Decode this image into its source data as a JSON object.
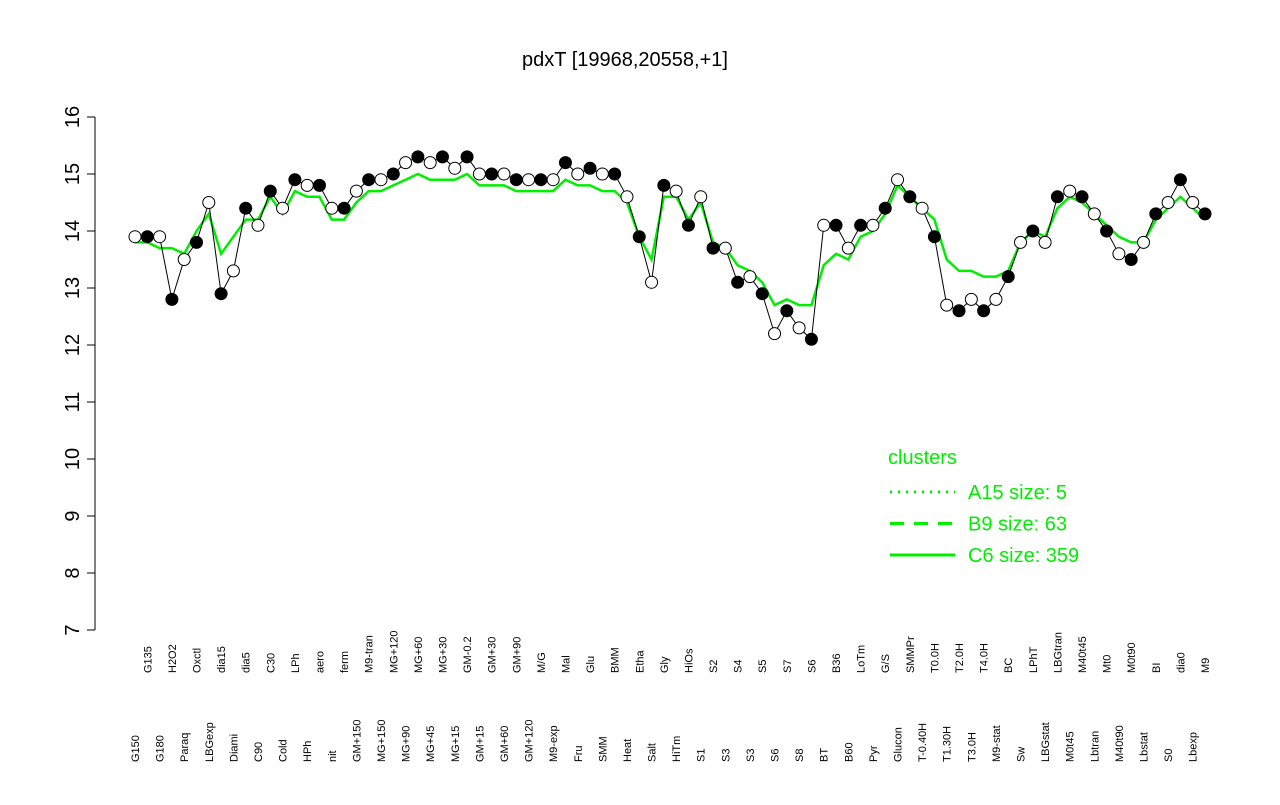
{
  "chart_data": {
    "type": "line",
    "title": "pdxT [19968,20558,+1]",
    "categories": [
      "G150",
      "G135",
      "G180",
      "H2O2",
      "Paraq",
      "Oxctl",
      "LBGexp",
      "dia15",
      "Diami",
      "dia5",
      "C90",
      "C30",
      "Cold",
      "LPh",
      "HPh",
      "aero",
      "nit",
      "ferm",
      "GM+150",
      "M9-tran",
      "MG+150",
      "MG+120",
      "MG+90",
      "MG+60",
      "MG+45",
      "MG+30",
      "MG+15",
      "GM-0.2",
      "GM+15",
      "GM+30",
      "GM+60",
      "GM+90",
      "GM+120",
      "M/G",
      "M9-exp",
      "Mal",
      "Fru",
      "Glu",
      "SMM",
      "BMM",
      "Heat",
      "Etha",
      "Salt",
      "Gly",
      "HiTm",
      "HiOs",
      "S1",
      "S2",
      "S3",
      "S4",
      "S3",
      "S5",
      "S6",
      "S7",
      "S8",
      "S6",
      "BT",
      "B36",
      "B60",
      "LoTm",
      "Pyr",
      "G/S",
      "Glucon",
      "SMMPr",
      "T-0.40H",
      "T0.0H",
      "T1.30H",
      "T2.0H",
      "T3.0H",
      "T4.0H",
      "M9-stat",
      "BC",
      "Sw",
      "LPhT",
      "LBGstat",
      "LBGtran",
      "M0t45",
      "M40t45",
      "Lbtran",
      "Mt0",
      "M40t90",
      "M0t90",
      "Lbstat",
      "BI",
      "S0",
      "dia0",
      "Lbexp",
      "M9"
    ],
    "series": [
      {
        "name": "pdxT",
        "color": "#000000",
        "values": [
          13.9,
          13.9,
          13.9,
          12.8,
          13.5,
          13.8,
          14.5,
          12.9,
          13.3,
          14.4,
          14.1,
          14.7,
          14.4,
          14.9,
          14.8,
          14.8,
          14.4,
          14.4,
          14.7,
          14.9,
          14.9,
          15.0,
          15.2,
          15.3,
          15.2,
          15.3,
          15.1,
          15.3,
          15.0,
          15.0,
          15.0,
          14.9,
          14.9,
          14.9,
          14.9,
          15.2,
          15.0,
          15.1,
          15.0,
          15.0,
          14.6,
          13.9,
          13.1,
          14.8,
          14.7,
          14.1,
          14.6,
          13.7,
          13.7,
          13.1,
          13.2,
          12.9,
          12.2,
          12.6,
          12.3,
          12.1,
          14.1,
          14.1,
          13.7,
          14.1,
          14.1,
          14.4,
          14.9,
          14.6,
          14.4,
          13.9,
          12.7,
          12.6,
          12.8,
          12.6,
          12.8,
          13.2,
          13.8,
          14.0,
          13.8,
          14.6,
          14.7,
          14.6,
          14.3,
          14.0,
          13.6,
          13.5,
          13.8,
          14.3,
          14.5,
          14.9,
          14.5,
          14.3
        ]
      },
      {
        "name": "C6 size: 359",
        "color": "#00ee00",
        "values": [
          13.8,
          13.8,
          13.7,
          13.7,
          13.6,
          14.0,
          14.3,
          13.6,
          13.9,
          14.2,
          14.2,
          14.6,
          14.3,
          14.7,
          14.6,
          14.6,
          14.2,
          14.2,
          14.5,
          14.7,
          14.7,
          14.8,
          14.9,
          15.0,
          14.9,
          14.9,
          14.9,
          15.0,
          14.8,
          14.8,
          14.8,
          14.7,
          14.7,
          14.7,
          14.7,
          14.9,
          14.8,
          14.8,
          14.7,
          14.7,
          14.5,
          13.9,
          13.5,
          14.6,
          14.6,
          14.2,
          14.5,
          13.8,
          13.7,
          13.4,
          13.3,
          13.1,
          12.7,
          12.8,
          12.7,
          12.7,
          13.4,
          13.6,
          13.5,
          13.9,
          14.0,
          14.3,
          14.8,
          14.6,
          14.4,
          14.2,
          13.5,
          13.3,
          13.3,
          13.2,
          13.2,
          13.3,
          13.8,
          14.0,
          13.9,
          14.4,
          14.6,
          14.5,
          14.3,
          14.1,
          13.9,
          13.8,
          13.8,
          14.2,
          14.4,
          14.6,
          14.4,
          14.2
        ]
      }
    ],
    "ylim": [
      7,
      16
    ],
    "yticks": [
      7,
      8,
      9,
      10,
      11,
      12,
      13,
      14,
      15,
      16
    ],
    "legend": {
      "title": "clusters",
      "entries": [
        {
          "name": "A15 size: 5",
          "dash": "2,6"
        },
        {
          "name": "B9 size: 63",
          "dash": "14,10"
        },
        {
          "name": "C6 size: 359",
          "dash": "none"
        }
      ]
    }
  }
}
